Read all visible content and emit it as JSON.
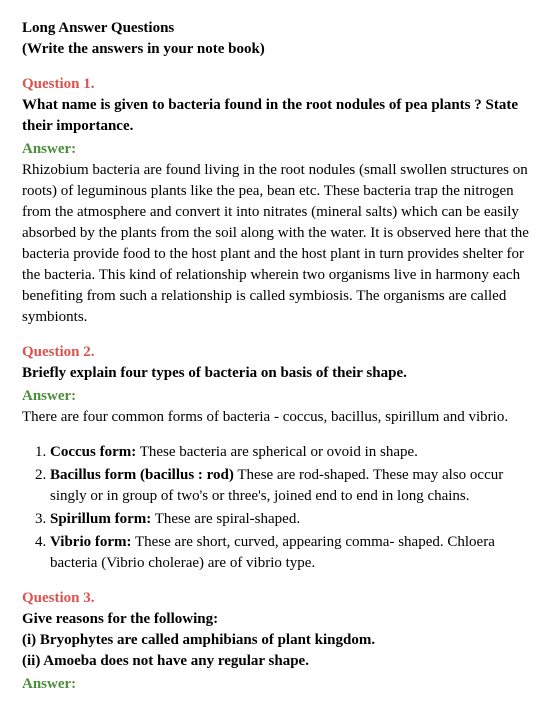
{
  "header": {
    "line1": "Long Answer Questions",
    "line2": "(Write the answers in your note book)"
  },
  "q1": {
    "label": "Question 1.",
    "text": "What name is given to bacteria found in the root nodules of pea plants ? State their importance.",
    "answer_label": "Answer:",
    "answer": "Rhizobium bacteria are found living in the root nodules (small swollen structures on roots) of leguminous plants like the pea, bean etc. These bacteria trap the nitrogen from the atmosphere and convert it into nitrates (mineral salts) which can be easily absorbed by the plants from the soil along with the water. It is observed here that the bacteria provide food to the host plant and the host plant in turn provides shelter for the bacteria. This kind of relationship wherein two organisms live in harmony each benefiting from such a relationship is called symbiosis. The organisms are called symbionts."
  },
  "q2": {
    "label": "Question 2.",
    "text": "Briefly explain four types of bacteria on basis of their shape.",
    "answer_label": "Answer:",
    "intro": "There are four common forms of bacteria - coccus, bacillus, spirillum and vibrio.",
    "forms": [
      {
        "name": "Coccus form:",
        "desc": " These bacteria are spherical or ovoid in shape."
      },
      {
        "name": "Bacillus form (bacillus : rod)",
        "desc": " These are rod-shaped. These may also occur singly or in group of two's or three's, joined end to end in long chains."
      },
      {
        "name": "Spirillum form:",
        "desc": " These are spiral-shaped."
      },
      {
        "name": "Vibrio form:",
        "desc": " These are short, curved, appearing comma- shaped. Chloera bacteria (Vibrio cholerae) are of vibrio type."
      }
    ]
  },
  "q3": {
    "label": "Question 3.",
    "text_line1": "Give reasons for the following:",
    "text_line2": "(i) Bryophytes are called amphibians of plant kingdom.",
    "text_line3": "(ii) Amoeba does not have any regular shape.",
    "answer_label": "Answer:"
  },
  "colors": {
    "question_label": "#d9534f",
    "answer_label": "#4a8f3a",
    "text": "#000000",
    "background": "#ffffff"
  }
}
